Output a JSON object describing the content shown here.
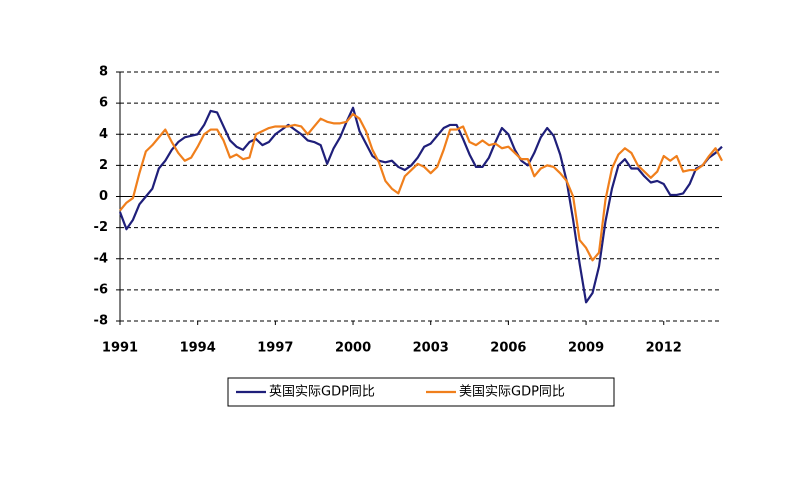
{
  "chart_data": {
    "type": "line",
    "x": [
      1991,
      1991.25,
      1991.5,
      1991.75,
      1992,
      1992.25,
      1992.5,
      1992.75,
      1993,
      1993.25,
      1993.5,
      1993.75,
      1994,
      1994.25,
      1994.5,
      1994.75,
      1995,
      1995.25,
      1995.5,
      1995.75,
      1996,
      1996.25,
      1996.5,
      1996.75,
      1997,
      1997.25,
      1997.5,
      1997.75,
      1998,
      1998.25,
      1998.5,
      1998.75,
      1999,
      1999.25,
      1999.5,
      1999.75,
      2000,
      2000.25,
      2000.5,
      2000.75,
      2001,
      2001.25,
      2001.5,
      2001.75,
      2002,
      2002.25,
      2002.5,
      2002.75,
      2003,
      2003.25,
      2003.5,
      2003.75,
      2004,
      2004.25,
      2004.5,
      2004.75,
      2005,
      2005.25,
      2005.5,
      2005.75,
      2006,
      2006.25,
      2006.5,
      2006.75,
      2007,
      2007.25,
      2007.5,
      2007.75,
      2008,
      2008.25,
      2008.5,
      2008.75,
      2009,
      2009.25,
      2009.5,
      2009.75,
      2010,
      2010.25,
      2010.5,
      2010.75,
      2011,
      2011.25,
      2011.5,
      2011.75,
      2012,
      2012.25,
      2012.5,
      2012.75,
      2013,
      2013.25,
      2013.5,
      2013.75,
      2014,
      2014.25
    ],
    "series": [
      {
        "name": "英国实际GDP同比",
        "color": "#1f1f7a",
        "values": [
          -1,
          -2.1,
          -1.5,
          -0.5,
          0,
          0.5,
          1.8,
          2.3,
          3,
          3.5,
          3.8,
          3.9,
          4,
          4.6,
          5.5,
          5.4,
          4.5,
          3.6,
          3.2,
          3,
          3.5,
          3.7,
          3.3,
          3.5,
          4,
          4.3,
          4.6,
          4.3,
          4,
          3.6,
          3.5,
          3.3,
          2.1,
          3.1,
          3.8,
          4.8,
          5.7,
          4.2,
          3.4,
          2.6,
          2.3,
          2.2,
          2.3,
          1.9,
          1.7,
          2,
          2.5,
          3.2,
          3.4,
          3.9,
          4.4,
          4.6,
          4.6,
          3.7,
          2.7,
          1.9,
          1.9,
          2.5,
          3.5,
          4.4,
          4,
          3,
          2.3,
          2,
          2.8,
          3.8,
          4.4,
          3.9,
          2.7,
          1,
          -1.5,
          -4.3,
          -6.8,
          -6.2,
          -4.5,
          -1.6,
          0.5,
          2,
          2.4,
          1.8,
          1.8,
          1.3,
          0.9,
          1,
          0.8,
          0.1,
          0.1,
          0.2,
          0.8,
          1.8,
          2,
          2.5,
          2.8,
          3.2
        ]
      },
      {
        "name": "美国实际GDP同比",
        "color": "#f07f1c",
        "values": [
          -0.9,
          -0.4,
          -0.1,
          1.5,
          2.9,
          3.3,
          3.8,
          4.3,
          3.5,
          2.8,
          2.3,
          2.5,
          3.2,
          4,
          4.3,
          4.3,
          3.6,
          2.5,
          2.7,
          2.4,
          2.5,
          4,
          4.2,
          4.4,
          4.5,
          4.5,
          4.5,
          4.6,
          4.5,
          4,
          4.5,
          5,
          4.8,
          4.7,
          4.7,
          4.8,
          5.3,
          5,
          4.2,
          3,
          2.2,
          1,
          0.5,
          0.2,
          1.3,
          1.7,
          2.1,
          1.9,
          1.5,
          1.9,
          3,
          4.3,
          4.3,
          4.5,
          3.5,
          3.3,
          3.6,
          3.3,
          3.4,
          3.1,
          3.2,
          2.8,
          2.4,
          2.4,
          1.3,
          1.8,
          2,
          1.9,
          1.5,
          1,
          0,
          -2.8,
          -3.3,
          -4.1,
          -3.6,
          -0.2,
          1.8,
          2.7,
          3.1,
          2.8,
          2,
          1.6,
          1.2,
          1.6,
          2.6,
          2.3,
          2.6,
          1.6,
          1.7,
          1.7,
          2,
          2.6,
          3.1,
          2.3
        ]
      }
    ],
    "xlim": [
      1991,
      2014.25
    ],
    "xticks": [
      1991,
      1994,
      1997,
      2000,
      2003,
      2006,
      2009,
      2012
    ],
    "ylim": [
      -8,
      8
    ],
    "yticks": [
      -8,
      -6,
      -4,
      -2,
      0,
      2,
      4,
      6,
      8
    ],
    "grid": true
  }
}
